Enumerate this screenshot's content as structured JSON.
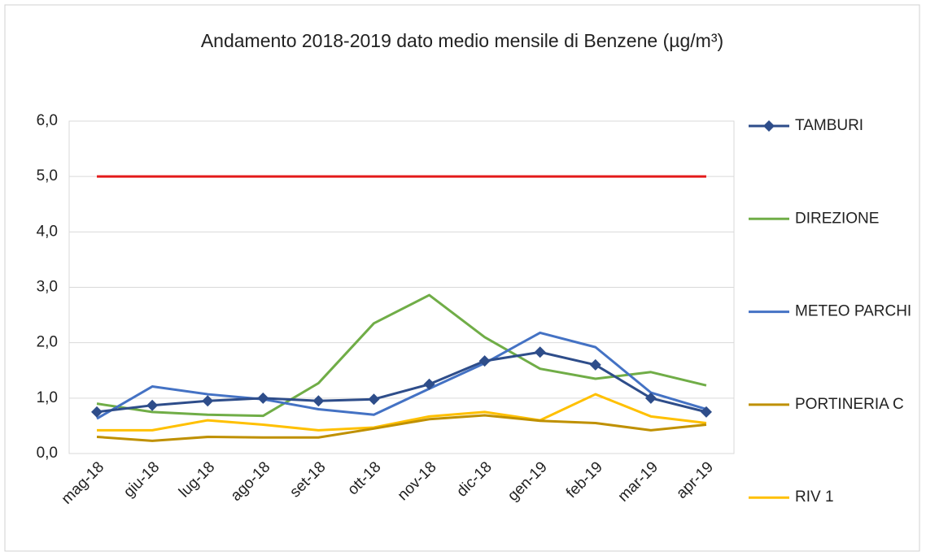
{
  "chart_data": {
    "type": "line",
    "title": "Andamento 2018-2019 dato medio mensile di Benzene (µg/m³)",
    "categories": [
      "mag-18",
      "giu-18",
      "lug-18",
      "ago-18",
      "set-18",
      "ott-18",
      "nov-18",
      "dic-18",
      "gen-19",
      "feb-19",
      "mar-19",
      "apr-19"
    ],
    "series": [
      {
        "name": "TAMBURI",
        "color": "#2e4d8a",
        "marker": "diamond",
        "values": [
          0.75,
          0.87,
          0.95,
          1.0,
          0.95,
          0.98,
          1.25,
          1.67,
          1.83,
          1.6,
          1.0,
          0.75
        ]
      },
      {
        "name": "DIREZIONE",
        "color": "#70ad47",
        "values": [
          0.9,
          0.75,
          0.7,
          0.68,
          1.27,
          2.35,
          2.86,
          2.1,
          1.53,
          1.35,
          1.47,
          1.23
        ]
      },
      {
        "name": "METEO PARCHI",
        "color": "#4472c4",
        "values": [
          0.63,
          1.21,
          1.07,
          0.98,
          0.8,
          0.7,
          1.17,
          1.63,
          2.18,
          1.92,
          1.1,
          0.8
        ]
      },
      {
        "name": "PORTINERIA C",
        "color": "#bf9000",
        "values": [
          0.3,
          0.23,
          0.3,
          0.29,
          0.29,
          0.45,
          0.62,
          0.69,
          0.59,
          0.55,
          0.42,
          0.52
        ]
      },
      {
        "name": "RIV 1",
        "color": "#ffc000",
        "values": [
          0.42,
          0.42,
          0.6,
          0.52,
          0.42,
          0.47,
          0.67,
          0.75,
          0.6,
          1.07,
          0.67,
          0.55
        ]
      }
    ],
    "reference_line": {
      "color": "#e31a1a",
      "values": [
        5,
        5,
        5,
        5,
        5,
        5,
        5,
        5,
        5,
        5,
        5,
        5
      ]
    },
    "ylim": [
      0,
      6
    ],
    "yticks": [
      {
        "value": 0,
        "label": "0,0"
      },
      {
        "value": 1,
        "label": "1,0"
      },
      {
        "value": 2,
        "label": "2,0"
      },
      {
        "value": 3,
        "label": "3,0"
      },
      {
        "value": 4,
        "label": "4,0"
      },
      {
        "value": 5,
        "label": "5,0"
      },
      {
        "value": 6,
        "label": "6,0"
      }
    ],
    "grid": true,
    "legend": "right"
  }
}
